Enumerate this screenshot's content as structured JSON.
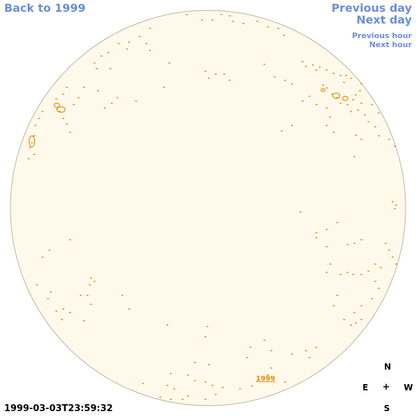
{
  "nav": {
    "back_label": "Back to 1999",
    "prev_day_label": "Previous day",
    "next_day_label": "Next day",
    "prev_hour_label": "Previous hour",
    "next_hour_label": "Next hour"
  },
  "disk": {
    "fill_color": "#fff9ec",
    "border_color": "#b9b39b",
    "feature_color": "#e88a00"
  },
  "year_link_label": "1999",
  "compass": {
    "north": "N",
    "east": "E",
    "center": "+",
    "west": "W",
    "south": "S"
  },
  "timestamp": "1999-03-03T23:59:32"
}
